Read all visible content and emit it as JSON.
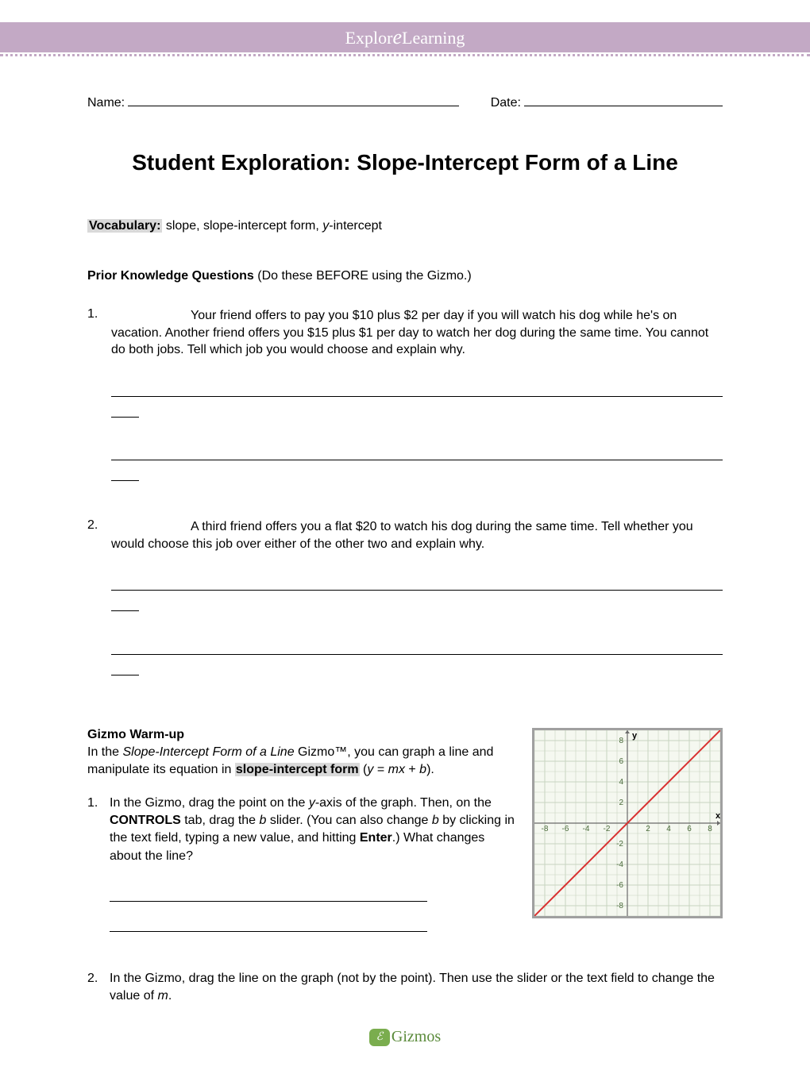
{
  "header": {
    "logo_text_1": "Explor",
    "logo_text_2": "e",
    "logo_text_3": "Learning"
  },
  "fields": {
    "name_label": "Name:",
    "date_label": "Date:"
  },
  "title": "Student Exploration: Slope-Intercept Form of a Line",
  "vocabulary": {
    "label": "Vocabulary:",
    "terms_prefix": " slope, slope-intercept form, ",
    "y_intercept_y": "y",
    "y_intercept_rest": "-intercept"
  },
  "prior_knowledge": {
    "heading": "Prior Knowledge Questions",
    "paren": " (Do these BEFORE using the Gizmo.)",
    "q1_num": "1.",
    "q1_text_a": "Your friend offers to pay you $10 plus $2 per day if you will watch his dog while he's on vacation. Another friend offers you $15 plus $1 per day to watch her dog during the same time. You cannot do both jobs. Tell which job you would choose and explain why.",
    "q2_num": "2.",
    "q2_text_a": "A third friend offers you a flat $20 to watch his dog during the same time. Tell whether you would choose this job over either of the other two and explain why."
  },
  "warmup": {
    "heading": "Gizmo Warm-up",
    "intro_1": "In the ",
    "intro_italic": "Slope-Intercept Form of a Line",
    "intro_2": " Gizmo™, you can graph a line and manipulate its equation in ",
    "intro_term": "slope-intercept form",
    "intro_3": " (",
    "intro_eq_y": "y",
    "intro_eq_mid": " = ",
    "intro_eq_mx": "mx",
    "intro_eq_plus": " + ",
    "intro_eq_b": "b",
    "intro_4": ").",
    "q1_num": "1.",
    "q1_a": "In the Gizmo, drag the point on the ",
    "q1_y": "y",
    "q1_b": "-axis of the graph. Then, on the ",
    "q1_controls": "CONTROLS",
    "q1_c": " tab, drag the ",
    "q1_bvar": "b",
    "q1_d": " slider. (You can also change ",
    "q1_bvar2": "b",
    "q1_e": " by clicking in the text field, typing a new value, and hitting ",
    "q1_enter": "Enter",
    "q1_f": ".) What changes about the line?",
    "q2_num": "2.",
    "q2_a": "In the Gizmo, drag the line on the graph (not by the point). Then use the slider or the text field to change the value of ",
    "q2_m": "m",
    "q2_b": "."
  },
  "graph": {
    "background_color": "#f5f8f0",
    "grid_color": "#c8d4c0",
    "axis_color": "#6a6a6a",
    "line_color": "#d93030",
    "xmin": -9,
    "xmax": 9,
    "ymin": -9,
    "ymax": 9,
    "tick_step": 2,
    "x_ticks": [
      -8,
      -6,
      -4,
      -2,
      2,
      4,
      6,
      8
    ],
    "y_ticks": [
      -8,
      -6,
      -4,
      -2,
      2,
      4,
      6,
      8
    ],
    "x_label": "x",
    "y_label": "y",
    "line_slope": 1,
    "line_intercept": 0,
    "label_fontsize": 10,
    "label_color": "#4a6a3a"
  },
  "footer": {
    "swirl": "ℰ",
    "text": "Gizmos"
  }
}
